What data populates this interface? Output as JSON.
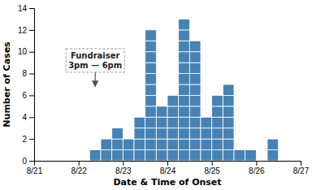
{
  "chart_data": {
    "type": "histogram",
    "xlabel": "Date & Time of Onset",
    "ylabel": "Number of Cases",
    "bins": [
      0,
      1,
      2,
      3,
      4,
      5,
      6,
      7,
      8,
      9,
      10,
      11,
      12,
      13,
      14,
      15,
      16,
      17,
      18,
      19,
      20,
      21,
      22,
      23,
      24
    ],
    "values": [
      0,
      0,
      0,
      0,
      0,
      1,
      2,
      3,
      2,
      4,
      12,
      5,
      6,
      13,
      11,
      4,
      6,
      7,
      1,
      1,
      0,
      2,
      0,
      0
    ],
    "xlim": [
      0,
      24
    ],
    "xticks": [
      {
        "value": 0,
        "label": "8/21"
      },
      {
        "value": 4,
        "label": "8/22"
      },
      {
        "value": 8,
        "label": "8/23"
      },
      {
        "value": 12,
        "label": "8/24"
      },
      {
        "value": 16,
        "label": "8/25"
      },
      {
        "value": 20,
        "label": "8/26"
      },
      {
        "value": 24,
        "label": "8/27"
      }
    ],
    "ylim": [
      0,
      14
    ],
    "yticks": [
      0,
      2,
      4,
      6,
      8,
      10,
      12,
      14
    ],
    "annotations": [
      {
        "text": "Fundraiser\n3pm — 6pm",
        "x": 5.5,
        "y": 9.2,
        "arrow_x": 5.5,
        "arrow_y": 6.8
      }
    ]
  }
}
